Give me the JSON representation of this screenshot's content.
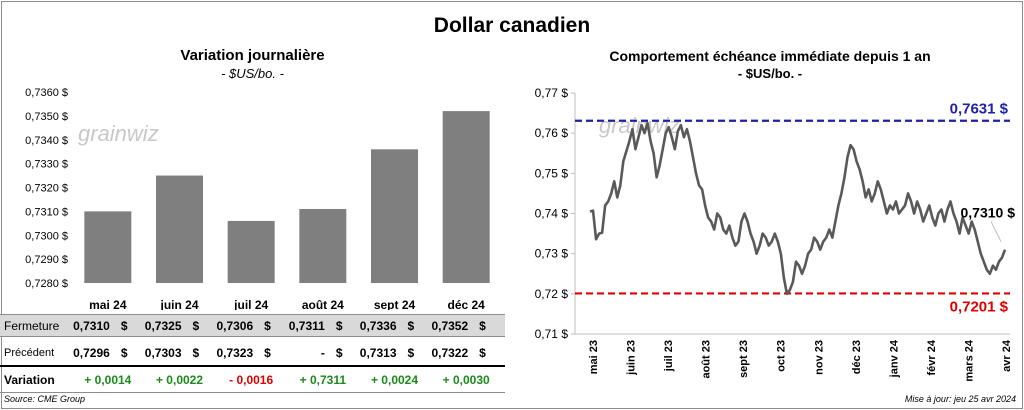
{
  "title": "Dollar canadien",
  "left": {
    "title": "Variation  journalière",
    "subtitle": "- $US/bo. -"
  },
  "right": {
    "title": "Comportement échéance immédiate depuis 1 an",
    "subtitle": "- $US/bo. -"
  },
  "watermark": "grainwiz",
  "table": {
    "rows": [
      {
        "label": "Fermeture",
        "values": [
          "0,7310",
          "0,7325",
          "0,7306",
          "0,7311",
          "0,7336",
          "0,7352"
        ],
        "shaded": true
      },
      {
        "label": "Précédent",
        "values": [
          "0,7296",
          "0,7303",
          "0,7323",
          "-",
          "0,7313",
          "0,7322"
        ],
        "shaded": false
      }
    ],
    "variation": {
      "label": "Variation",
      "values": [
        "+ 0,0014",
        "+ 0,0022",
        "- 0,0016",
        "+ 0,7311",
        "+ 0,0024",
        "+ 0,0030"
      ],
      "colors": [
        "#1a8a1a",
        "#1a8a1a",
        "#e00000",
        "#1a8a1a",
        "#1a8a1a",
        "#1a8a1a"
      ]
    },
    "currency": "$"
  },
  "footer": {
    "source": "Source: CME Group",
    "updated": "Mise à jour: jeu 25 avr 2024"
  },
  "chart_data": [
    {
      "type": "bar",
      "title": "Variation  journalière",
      "subtitle": "- $US/bo. -",
      "categories": [
        "mai 24",
        "juin 24",
        "juil 24",
        "août 24",
        "sept 24",
        "déc 24"
      ],
      "values": [
        0.731,
        0.7325,
        0.7306,
        0.7311,
        0.7336,
        0.7352
      ],
      "ylim": [
        0.728,
        0.736
      ],
      "yticks": [
        "0,7360 $",
        "0,7350 $",
        "0,7340 $",
        "0,7330 $",
        "0,7320 $",
        "0,7310 $",
        "0,7300 $",
        "0,7290 $",
        "0,7280 $"
      ],
      "grid": false,
      "color": "#7f7f7f"
    },
    {
      "type": "line",
      "title": "Comportement échéance immédiate depuis 1 an",
      "subtitle": "- $US/bo. -",
      "xticks": [
        "mai 23",
        "juin 23",
        "juil 23",
        "août 23",
        "sept 23",
        "oct 23",
        "nov 23",
        "déc 23",
        "janv 24",
        "févr 24",
        "mars 24",
        "avr 24"
      ],
      "ylim": [
        0.71,
        0.77
      ],
      "yticks": [
        "0,77 $",
        "0,76 $",
        "0,75 $",
        "0,74 $",
        "0,73 $",
        "0,72 $",
        "0,71 $"
      ],
      "series": [
        {
          "color": "#595959",
          "values": [
            0.7405,
            0.7407,
            0.7336,
            0.735,
            0.7352,
            0.742,
            0.743,
            0.745,
            0.748,
            0.744,
            0.747,
            0.753,
            0.7555,
            0.758,
            0.761,
            0.756,
            0.759,
            0.762,
            0.76,
            0.7625,
            0.758,
            0.755,
            0.749,
            0.752,
            0.756,
            0.76,
            0.7615,
            0.759,
            0.756,
            0.7605,
            0.762,
            0.759,
            0.761,
            0.758,
            0.754,
            0.75,
            0.747,
            0.746,
            0.742,
            0.739,
            0.738,
            0.736,
            0.74,
            0.739,
            0.736,
            0.735,
            0.737,
            0.734,
            0.732,
            0.733,
            0.738,
            0.74,
            0.738,
            0.735,
            0.733,
            0.73,
            0.732,
            0.735,
            0.734,
            0.732,
            0.733,
            0.735,
            0.733,
            0.73,
            0.724,
            0.72,
            0.721,
            0.723,
            0.728,
            0.727,
            0.725,
            0.727,
            0.73,
            0.731,
            0.734,
            0.733,
            0.731,
            0.733,
            0.734,
            0.736,
            0.734,
            0.738,
            0.742,
            0.745,
            0.749,
            0.754,
            0.757,
            0.756,
            0.753,
            0.751,
            0.748,
            0.744,
            0.746,
            0.743,
            0.745,
            0.748,
            0.746,
            0.743,
            0.74,
            0.742,
            0.741,
            0.743,
            0.74,
            0.741,
            0.742,
            0.745,
            0.743,
            0.74,
            0.743,
            0.741,
            0.738,
            0.74,
            0.742,
            0.739,
            0.737,
            0.74,
            0.741,
            0.738,
            0.741,
            0.743,
            0.74,
            0.738,
            0.735,
            0.739,
            0.737,
            0.735,
            0.738,
            0.736,
            0.733,
            0.73,
            0.728,
            0.726,
            0.725,
            0.727,
            0.726,
            0.728,
            0.729,
            0.731
          ]
        }
      ],
      "reference_lines": [
        {
          "value": 0.7631,
          "label": "0,7631 $",
          "color": "#1f1fa8"
        },
        {
          "value": 0.7201,
          "label": "0,7201 $",
          "color": "#e00000"
        }
      ],
      "last_value_label": "0,7310 $",
      "grid": false
    }
  ]
}
